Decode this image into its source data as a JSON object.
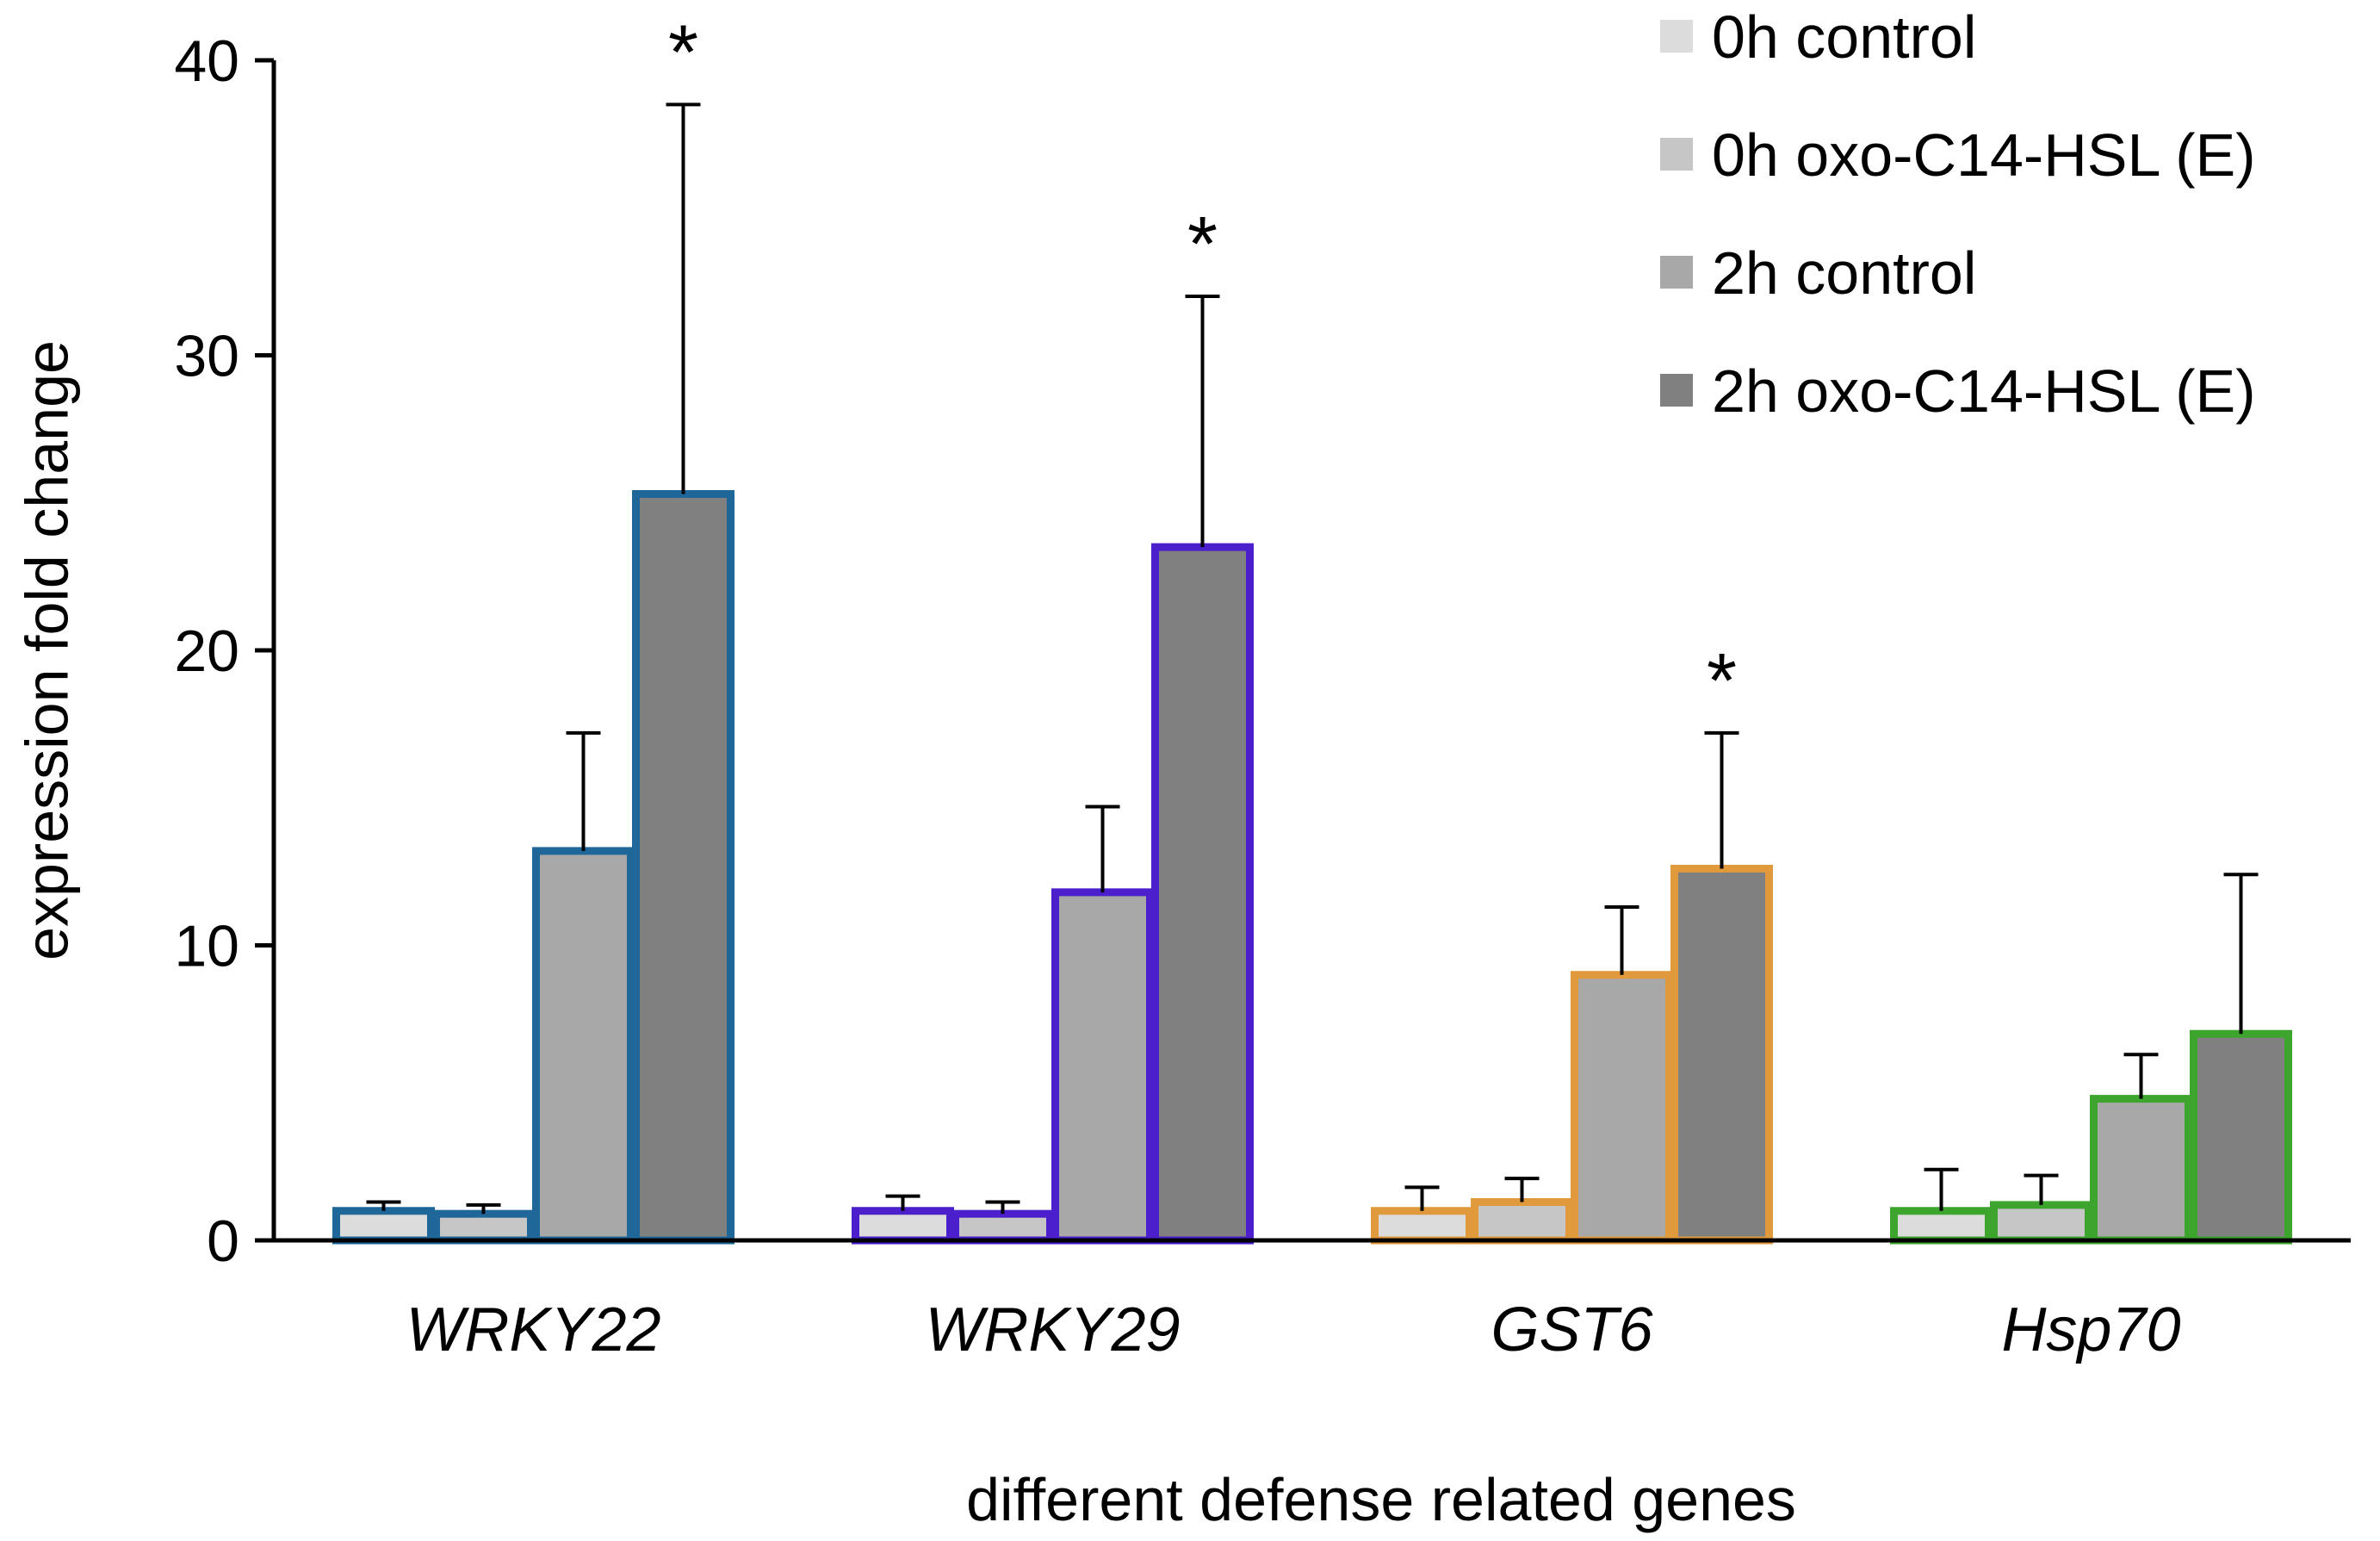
{
  "chart_data": {
    "type": "bar",
    "title": "",
    "xlabel": "different defense related genes",
    "ylabel": "expression fold change",
    "ylim": [
      0,
      40
    ],
    "yticks": [
      0,
      10,
      20,
      30,
      40
    ],
    "grid": false,
    "legend_position": "top-right",
    "categories": [
      "WRKY22",
      "WRKY29",
      "GST6",
      "Hsp70"
    ],
    "category_outline_colors": [
      "#1f6699",
      "#4b1fcc",
      "#e09a3c",
      "#3da52e"
    ],
    "series": [
      {
        "name": "0h control",
        "fill": "#dcdcdc",
        "values": [
          1.0,
          1.0,
          1.0,
          1.0
        ],
        "errors": [
          0.3,
          0.5,
          0.8,
          1.4
        ],
        "significant": [
          false,
          false,
          false,
          false
        ]
      },
      {
        "name": "0h oxo-C14-HSL (E)",
        "fill": "#c6c6c6",
        "values": [
          0.9,
          0.9,
          1.3,
          1.2
        ],
        "errors": [
          0.3,
          0.4,
          0.8,
          1.0
        ],
        "significant": [
          false,
          false,
          false,
          false
        ]
      },
      {
        "name": "2h control",
        "fill": "#a8a8a8",
        "values": [
          13.2,
          11.8,
          9.0,
          4.8
        ],
        "errors": [
          4.0,
          2.9,
          2.3,
          1.5
        ],
        "significant": [
          false,
          false,
          false,
          false
        ]
      },
      {
        "name": "2h oxo-C14-HSL (E)",
        "fill": "#808080",
        "values": [
          25.3,
          23.5,
          12.6,
          7.0
        ],
        "errors": [
          13.2,
          8.5,
          4.6,
          5.4
        ],
        "significant": [
          true,
          true,
          true,
          false
        ]
      }
    ],
    "significance_symbol": "*"
  }
}
